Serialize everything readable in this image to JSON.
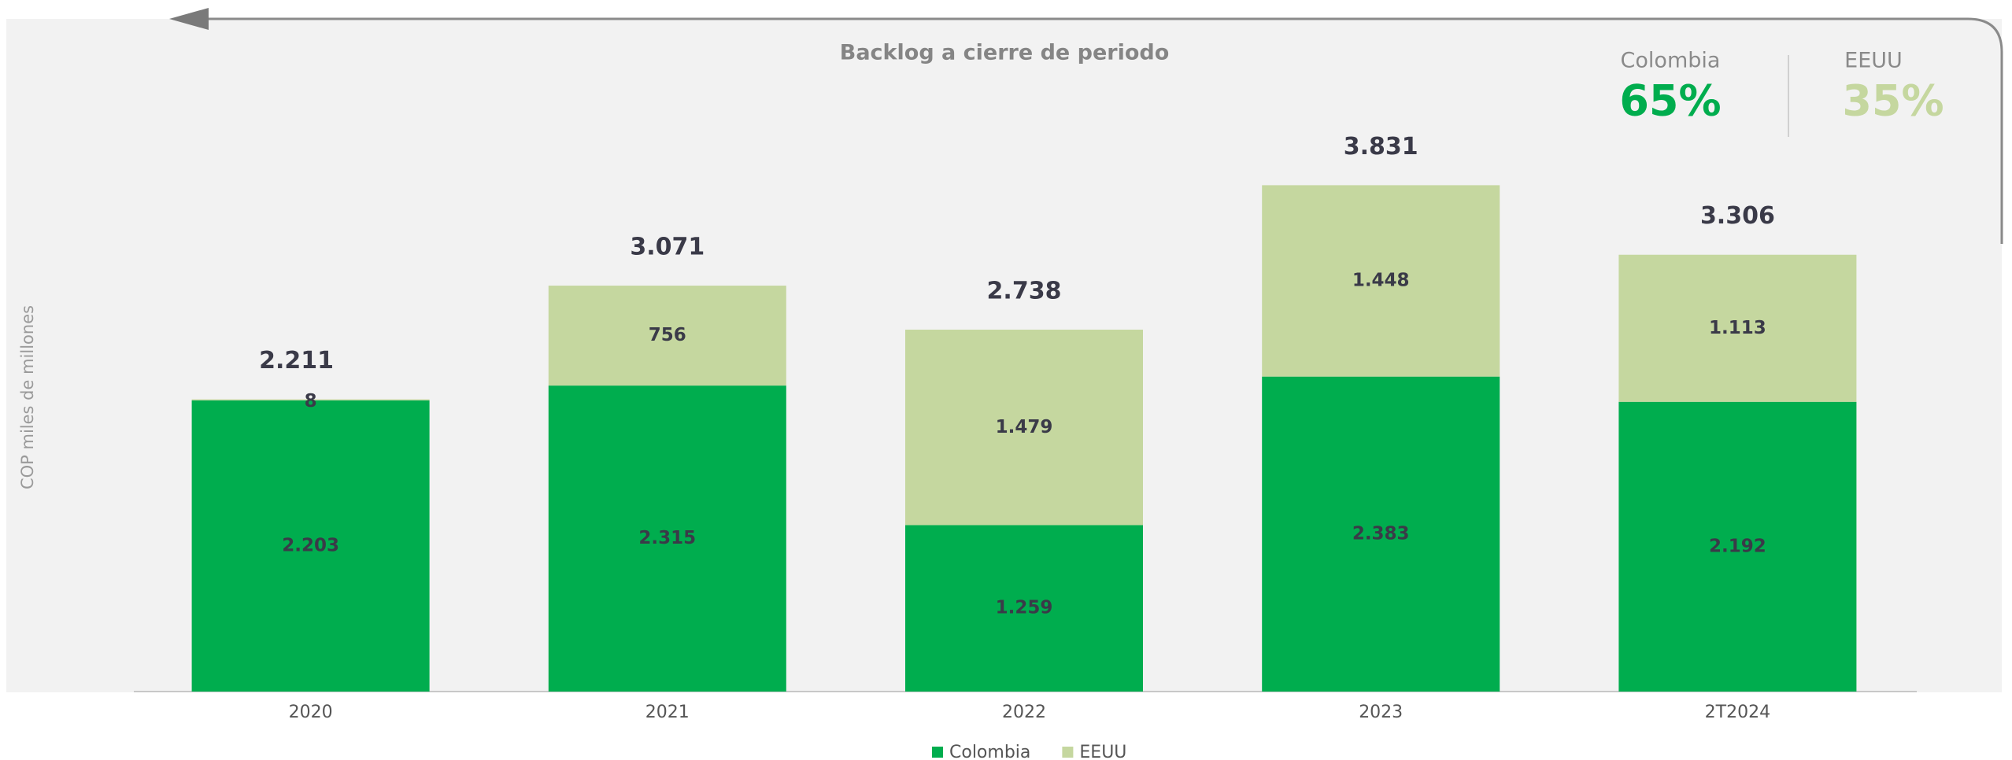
{
  "chart_data": {
    "type": "stacked_bar",
    "title": "Backlog a cierre de periodo",
    "ylabel": "COP miles de millones",
    "categories": [
      "2020",
      "2021",
      "2022",
      "2023",
      "2T2024"
    ],
    "series": [
      {
        "name": "Colombia",
        "color": "#00ad4e",
        "values": [
          2203,
          2315,
          1259,
          2383,
          2192
        ],
        "value_labels": [
          "2.203",
          "2.315",
          "1.259",
          "2.383",
          "2.192"
        ]
      },
      {
        "name": "EEUU",
        "color": "#c5d79f",
        "values": [
          8,
          756,
          1479,
          1448,
          1113
        ],
        "value_labels": [
          "8",
          "756",
          "1.479",
          "1.448",
          "1.113"
        ]
      }
    ],
    "totals": {
      "values": [
        2211,
        3071,
        2738,
        3831,
        3306
      ],
      "value_labels": [
        "2.211",
        "3.071",
        "2.738",
        "3.831",
        "3.306"
      ]
    },
    "shares": [
      {
        "name": "Colombia",
        "value": 65,
        "label": "65%",
        "color": "#00ad4e"
      },
      {
        "name": "EEUU",
        "value": 35,
        "label": "35%",
        "color": "#c5d79f"
      }
    ],
    "ylim": [
      0,
      4000
    ],
    "legend": "bottom"
  }
}
